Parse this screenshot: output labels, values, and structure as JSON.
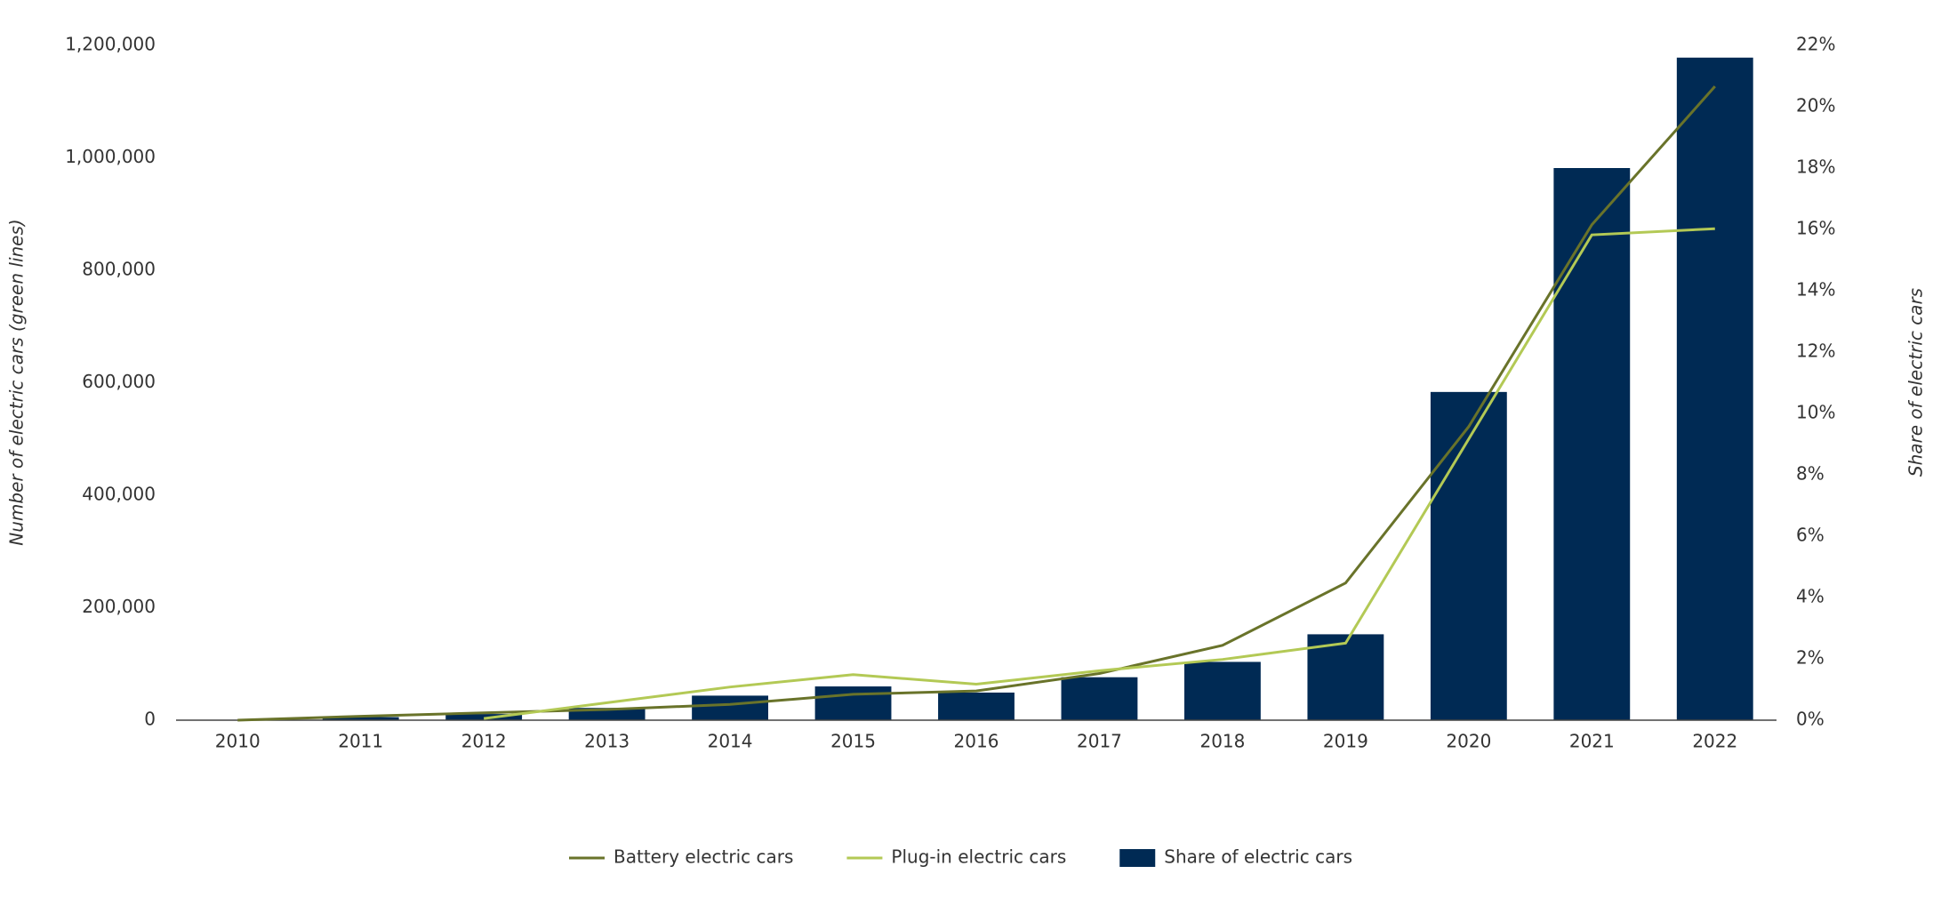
{
  "chart_data": {
    "type": "bar-line",
    "categories": [
      "2010",
      "2011",
      "2012",
      "2013",
      "2014",
      "2015",
      "2016",
      "2017",
      "2018",
      "2019",
      "2020",
      "2021",
      "2022"
    ],
    "y_label": "Number of electric cars (green lines)",
    "y2_label": "Share of electric cars",
    "ylim": [
      0,
      1200000
    ],
    "yticks": [
      0,
      {
        "value": 200000,
        "label": "200,000"
      },
      {
        "value": 400000,
        "label": "400,000"
      },
      {
        "value": 600000,
        "label": "600,000"
      },
      {
        "value": 800000,
        "label": "800,000"
      },
      {
        "value": 1000000,
        "label": "1,000,000"
      },
      {
        "value": 1200000,
        "label": "1,200,000"
      }
    ],
    "y2lim": [
      0,
      22
    ],
    "y2ticks": [
      {
        "value": 0,
        "label": "0%"
      },
      {
        "value": 2,
        "label": "2%"
      },
      {
        "value": 4,
        "label": "4%"
      },
      {
        "value": 6,
        "label": "6%"
      },
      {
        "value": 8,
        "label": "8%"
      },
      {
        "value": 10,
        "label": "10%"
      },
      {
        "value": 12,
        "label": "12%"
      },
      {
        "value": 14,
        "label": "14%"
      },
      {
        "value": 16,
        "label": "16%"
      },
      {
        "value": 18,
        "label": "18%"
      },
      {
        "value": 20,
        "label": "20%"
      },
      {
        "value": 22,
        "label": "22%"
      }
    ],
    "series": [
      {
        "name": "Battery electric cars",
        "kind": "line",
        "color": "#69732a",
        "values": [
          0,
          7000,
          13000,
          19000,
          28000,
          46000,
          52000,
          83000,
          133000,
          244000,
          522000,
          881000,
          1127000
        ]
      },
      {
        "name": "Plug-in electric cars",
        "kind": "line",
        "color": "#b3c955",
        "values": [
          null,
          null,
          3000,
          31000,
          59000,
          81000,
          64000,
          88000,
          108000,
          137000,
          500000,
          863000,
          874000
        ]
      },
      {
        "name": "Share of electric cars",
        "kind": "bar",
        "axis": "y2",
        "color": "#002a54",
        "values": [
          0,
          0.1,
          0.2,
          0.4,
          0.8,
          1.1,
          0.9,
          1.4,
          1.9,
          2.8,
          10.7,
          18.0,
          21.6
        ]
      }
    ],
    "legend": "bottom"
  }
}
